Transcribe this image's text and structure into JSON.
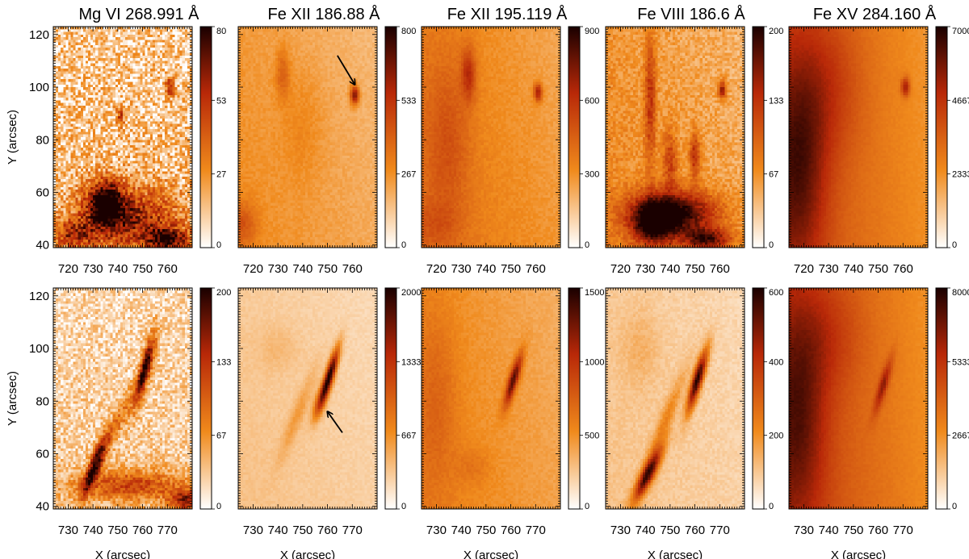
{
  "colors": {
    "min": "#ffffff",
    "mid": "#f08a1c",
    "high": "#b82808",
    "max": "#1a0000",
    "annotation": "#000000"
  },
  "chart_data": {
    "type": "heatmap",
    "ylabel": "Y (arcsec)",
    "xlabel": "X (arcsec)",
    "rows": [
      {
        "xlim": [
          714,
          770
        ],
        "xticks": [
          720,
          730,
          740,
          750,
          760
        ],
        "show_xlabel": false,
        "panels": [
          {
            "title": "Mg VI 268.991 Å",
            "cmax": 80,
            "cbar_ticks": [
              "0",
              "27",
              "53",
              "80"
            ],
            "base": 0.18,
            "noise": 0.22,
            "xgrad": 0,
            "ygrad": 0.05,
            "features": [
              {
                "x": 735,
                "y": 56,
                "sx": 5,
                "sy": 6,
                "a": 0.85
              },
              {
                "x": 745,
                "y": 50,
                "sx": 14,
                "sy": 8,
                "a": 0.55
              },
              {
                "x": 760,
                "y": 42,
                "sx": 6,
                "sy": 3,
                "a": 0.7
              },
              {
                "x": 722,
                "y": 44,
                "sx": 6,
                "sy": 4,
                "a": 0.45
              },
              {
                "x": 761,
                "y": 100,
                "sx": 1.2,
                "sy": 2.5,
                "a": 0.55
              },
              {
                "x": 741,
                "y": 89,
                "sx": 1.2,
                "sy": 2.5,
                "a": 0.45
              }
            ]
          },
          {
            "title": "Fe XII 186.88 Å",
            "cmax": 800,
            "cbar_ticks": [
              "0",
              "267",
              "533",
              "800"
            ],
            "base": 0.28,
            "noise": 0.03,
            "xgrad": -0.1,
            "ygrad": 0.05,
            "features": [
              {
                "x": 761,
                "y": 97,
                "sx": 1.2,
                "sy": 2.5,
                "a": 0.6
              },
              {
                "x": 732,
                "y": 105,
                "sx": 2,
                "sy": 7,
                "a": 0.2
              },
              {
                "x": 716,
                "y": 48,
                "sx": 4,
                "sy": 6,
                "a": 0.2
              },
              {
                "x": 740,
                "y": 85,
                "sx": 6,
                "sy": 15,
                "a": 0.08
              }
            ],
            "annotation": {
              "from": [
                754,
                112
              ],
              "to": [
                761,
                101
              ]
            }
          },
          {
            "title": "Fe XII 195.119 Å",
            "cmax": 900,
            "cbar_ticks": [
              "0",
              "300",
              "600",
              "900"
            ],
            "base": 0.36,
            "noise": 0.03,
            "xgrad": -0.15,
            "ygrad": 0.05,
            "features": [
              {
                "x": 761,
                "y": 98,
                "sx": 1.2,
                "sy": 2.5,
                "a": 0.45
              },
              {
                "x": 733,
                "y": 105,
                "sx": 2,
                "sy": 7,
                "a": 0.3
              },
              {
                "x": 725,
                "y": 80,
                "sx": 6,
                "sy": 22,
                "a": 0.15
              },
              {
                "x": 720,
                "y": 48,
                "sx": 6,
                "sy": 6,
                "a": 0.1
              }
            ]
          },
          {
            "title": "Fe VIII 186.6 Å",
            "cmax": 200,
            "cbar_ticks": [
              "0",
              "67",
              "133",
              "200"
            ],
            "base": 0.3,
            "noise": 0.08,
            "xgrad": -0.1,
            "ygrad": 0.05,
            "features": [
              {
                "x": 742,
                "y": 52,
                "sx": 12,
                "sy": 6,
                "a": 0.7
              },
              {
                "x": 733,
                "y": 48,
                "sx": 6,
                "sy": 6,
                "a": 0.55
              },
              {
                "x": 755,
                "y": 42,
                "sx": 7,
                "sy": 3,
                "a": 0.55
              },
              {
                "x": 732,
                "y": 95,
                "sx": 1.5,
                "sy": 18,
                "a": 0.35
              },
              {
                "x": 761,
                "y": 99,
                "sx": 1.2,
                "sy": 2.5,
                "a": 0.5
              },
              {
                "x": 750,
                "y": 74,
                "sx": 1.5,
                "sy": 6,
                "a": 0.4
              },
              {
                "x": 740,
                "y": 72,
                "sx": 2,
                "sy": 8,
                "a": 0.3
              }
            ]
          },
          {
            "title": "Fe XV 284.160 Å",
            "cmax": 7000,
            "cbar_ticks": [
              "0",
              "2333",
              "4667",
              "7000"
            ],
            "base": 0.45,
            "noise": 0.015,
            "xgrad": -0.25,
            "ygrad": 0.02,
            "features": [
              {
                "x": 718,
                "y": 70,
                "sx": 8,
                "sy": 30,
                "a": 0.35
              },
              {
                "x": 730,
                "y": 100,
                "sx": 10,
                "sy": 20,
                "a": 0.15
              },
              {
                "x": 761,
                "y": 100,
                "sx": 1.2,
                "sy": 2.5,
                "a": 0.4
              }
            ]
          }
        ]
      },
      {
        "xlim": [
          724,
          780
        ],
        "xticks": [
          730,
          740,
          750,
          760,
          770
        ],
        "show_xlabel": true,
        "panels": [
          {
            "title": "",
            "cmax": 200,
            "cbar_ticks": [
              "0",
              "67",
              "133",
              "200"
            ],
            "base": 0.14,
            "noise": 0.14,
            "xgrad": 0,
            "ygrad": 0.05,
            "features": [
              {
                "x": 761,
                "y": 92,
                "sx": 1.5,
                "sy": 9,
                "a": 0.85,
                "tilt": 0.25
              },
              {
                "x": 741,
                "y": 56,
                "sx": 1.8,
                "sy": 8,
                "a": 0.8,
                "tilt": 0.4
              },
              {
                "x": 755,
                "y": 48,
                "sx": 16,
                "sy": 4,
                "a": 0.45
              },
              {
                "x": 778,
                "y": 42,
                "sx": 5,
                "sy": 3,
                "a": 0.6
              },
              {
                "x": 752,
                "y": 75,
                "sx": 2,
                "sy": 12,
                "a": 0.25,
                "tilt": 0.5
              }
            ]
          },
          {
            "title": "",
            "cmax": 2000,
            "cbar_ticks": [
              "0",
              "667",
              "1333",
              "2000"
            ],
            "base": 0.15,
            "noise": 0.02,
            "xgrad": -0.05,
            "ygrad": 0.03,
            "features": [
              {
                "x": 761,
                "y": 90,
                "sx": 1.3,
                "sy": 7,
                "a": 0.85,
                "tilt": 0.3
              },
              {
                "x": 757,
                "y": 80,
                "sx": 1.5,
                "sy": 5,
                "a": 0.4,
                "tilt": 0.3
              },
              {
                "x": 748,
                "y": 75,
                "sx": 2,
                "sy": 12,
                "a": 0.15,
                "tilt": 0.4
              },
              {
                "x": 740,
                "y": 100,
                "sx": 6,
                "sy": 6,
                "a": 0.06
              }
            ],
            "annotation": {
              "from": [
                766,
                68
              ],
              "to": [
                760,
                76
              ]
            }
          },
          {
            "title": "",
            "cmax": 1500,
            "cbar_ticks": [
              "0",
              "500",
              "1000",
              "1500"
            ],
            "base": 0.32,
            "noise": 0.025,
            "xgrad": -0.12,
            "ygrad": 0.04,
            "features": [
              {
                "x": 761,
                "y": 88,
                "sx": 1.4,
                "sy": 7,
                "a": 0.6,
                "tilt": 0.3
              },
              {
                "x": 730,
                "y": 80,
                "sx": 6,
                "sy": 25,
                "a": 0.12
              },
              {
                "x": 745,
                "y": 55,
                "sx": 5,
                "sy": 5,
                "a": 0.08
              }
            ]
          },
          {
            "title": "",
            "cmax": 600,
            "cbar_ticks": [
              "0",
              "200",
              "400",
              "600"
            ],
            "base": 0.15,
            "noise": 0.03,
            "xgrad": -0.05,
            "ygrad": 0.02,
            "features": [
              {
                "x": 761,
                "y": 88,
                "sx": 1.5,
                "sy": 8,
                "a": 0.85,
                "tilt": 0.3
              },
              {
                "x": 741,
                "y": 52,
                "sx": 2,
                "sy": 7,
                "a": 0.75,
                "tilt": 0.5
              },
              {
                "x": 748,
                "y": 72,
                "sx": 2,
                "sy": 14,
                "a": 0.22,
                "tilt": 0.4
              },
              {
                "x": 738,
                "y": 100,
                "sx": 5,
                "sy": 10,
                "a": 0.08
              }
            ]
          },
          {
            "title": "",
            "cmax": 8000,
            "cbar_ticks": [
              "0",
              "2667",
              "5333",
              "8000"
            ],
            "base": 0.48,
            "noise": 0.015,
            "xgrad": -0.28,
            "ygrad": 0.02,
            "features": [
              {
                "x": 728,
                "y": 75,
                "sx": 8,
                "sy": 30,
                "a": 0.3
              },
              {
                "x": 762,
                "y": 86,
                "sx": 1.3,
                "sy": 7,
                "a": 0.35,
                "tilt": 0.3
              },
              {
                "x": 740,
                "y": 105,
                "sx": 10,
                "sy": 15,
                "a": 0.12
              }
            ]
          }
        ]
      }
    ],
    "ylim": [
      39,
      123
    ],
    "yticks": [
      40,
      60,
      80,
      100,
      120
    ]
  }
}
